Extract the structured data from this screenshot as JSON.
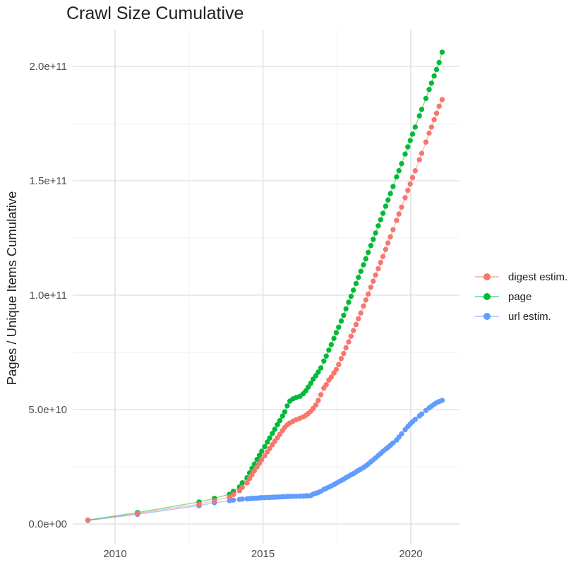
{
  "title": "Crawl Size Cumulative",
  "colors": {
    "background": "#FFFFFF",
    "grid_major": "#E3E3E3",
    "grid_minor": "#F0F0F0",
    "tick_text": "#4D4D4D",
    "text": "#1F1F1F",
    "digest": "#F8766D",
    "page": "#00BA38",
    "url": "#619CFF"
  },
  "legend": {
    "position": "right",
    "items": [
      {
        "label": "digest estim.",
        "color": "#F8766D"
      },
      {
        "label": "page",
        "color": "#00BA38"
      },
      {
        "label": "url estim.",
        "color": "#619CFF"
      }
    ]
  },
  "chart_data": {
    "type": "line",
    "title": "Crawl Size Cumulative",
    "xlabel": "",
    "ylabel": "Pages / Unique Items Cumulative",
    "legend_position": "right",
    "grid": true,
    "x_unit": "decimal year",
    "value_unit_multiplier": 1000000000.0,
    "xlim": [
      2008.55,
      2021.65
    ],
    "ylim": [
      -10000000000.0,
      216000000000.0
    ],
    "x_ticks": [
      {
        "value": 2010,
        "label": "2010"
      },
      {
        "value": 2015,
        "label": "2015"
      },
      {
        "value": 2020,
        "label": "2020"
      }
    ],
    "x_minor": [
      2012.5,
      2017.5
    ],
    "y_ticks": [
      {
        "value_e9": 0,
        "label": "0.0e+00"
      },
      {
        "value_e9": 50,
        "label": "5.0e+10"
      },
      {
        "value_e9": 100,
        "label": "1.0e+11"
      },
      {
        "value_e9": 150,
        "label": "1.5e+11"
      },
      {
        "value_e9": 200,
        "label": "2.0e+11"
      }
    ],
    "y_minor_e9": [
      25,
      75,
      125,
      175
    ],
    "x": [
      2009.08,
      2010.76,
      2012.84,
      2013.36,
      2013.87,
      2014.0,
      2014.21,
      2014.3,
      2014.46,
      2014.55,
      2014.63,
      2014.71,
      2014.8,
      2014.88,
      2014.96,
      2015.06,
      2015.15,
      2015.23,
      2015.32,
      2015.4,
      2015.49,
      2015.57,
      2015.66,
      2015.74,
      2015.82,
      2015.91,
      2016.02,
      2016.13,
      2016.25,
      2016.36,
      2016.45,
      2016.53,
      2016.62,
      2016.7,
      2016.79,
      2016.87,
      2016.96,
      2017.06,
      2017.14,
      2017.23,
      2017.31,
      2017.4,
      2017.48,
      2017.56,
      2017.65,
      2017.73,
      2017.81,
      2017.9,
      2017.98,
      2018.06,
      2018.15,
      2018.23,
      2018.31,
      2018.4,
      2018.48,
      2018.56,
      2018.65,
      2018.73,
      2018.81,
      2018.9,
      2018.98,
      2019.06,
      2019.15,
      2019.23,
      2019.31,
      2019.4,
      2019.52,
      2019.6,
      2019.69,
      2019.81,
      2019.9,
      2019.98,
      2020.06,
      2020.15,
      2020.29,
      2020.37,
      2020.51,
      2020.62,
      2020.7,
      2020.79,
      2020.87,
      2020.96,
      2021.06
    ],
    "series": [
      {
        "name": "digest estim.",
        "color": "#F8766D",
        "values_e9": [
          1.6,
          4.6,
          8.6,
          10.2,
          11.8,
          12.9,
          14.5,
          16.0,
          18.0,
          19.8,
          21.5,
          23.2,
          24.9,
          26.5,
          28.1,
          29.8,
          31.5,
          33.0,
          34.6,
          36.1,
          37.7,
          39.2,
          40.8,
          42.2,
          43.3,
          44.1,
          44.9,
          45.6,
          46.2,
          46.8,
          47.5,
          48.3,
          49.3,
          50.5,
          52.0,
          54.0,
          56.5,
          59.4,
          60.9,
          62.9,
          64.2,
          66.0,
          67.5,
          69.7,
          72.3,
          74.5,
          77.0,
          79.6,
          82.0,
          84.5,
          87.2,
          89.7,
          92.2,
          95.3,
          97.9,
          100.5,
          103.5,
          106.1,
          108.8,
          111.6,
          114.3,
          116.9,
          120.0,
          122.8,
          125.5,
          128.6,
          132.7,
          135.5,
          138.5,
          142.6,
          145.8,
          148.6,
          151.4,
          154.4,
          159.2,
          162.0,
          166.9,
          170.8,
          173.5,
          176.7,
          179.5,
          182.6,
          185.5
        ]
      },
      {
        "name": "page",
        "color": "#00BA38",
        "values_e9": [
          1.7,
          5.0,
          9.6,
          11.2,
          13.0,
          14.3,
          16.2,
          18.0,
          20.2,
          22.3,
          24.3,
          26.2,
          28.2,
          30.0,
          31.8,
          33.8,
          35.8,
          37.6,
          39.6,
          41.4,
          43.4,
          45.2,
          47.2,
          49.0,
          51.6,
          53.7,
          54.7,
          55.3,
          55.8,
          56.9,
          58.2,
          59.8,
          61.5,
          63.3,
          64.8,
          66.4,
          68.2,
          71.2,
          73.4,
          76.0,
          78.4,
          81.1,
          83.6,
          86.0,
          88.7,
          91.2,
          94.0,
          96.9,
          99.5,
          102.2,
          105.1,
          107.8,
          110.4,
          113.3,
          115.9,
          118.7,
          121.7,
          124.4,
          127.2,
          130.3,
          133.0,
          135.8,
          138.9,
          141.6,
          144.4,
          147.5,
          151.7,
          154.4,
          157.5,
          161.7,
          164.8,
          167.6,
          170.4,
          173.5,
          178.4,
          181.2,
          186.0,
          189.9,
          192.7,
          195.8,
          198.6,
          201.7,
          206.2
        ]
      },
      {
        "name": "url estim.",
        "color": "#619CFF",
        "values_e9": [
          1.5,
          4.2,
          8.0,
          9.3,
          10.2,
          10.4,
          10.7,
          10.9,
          11.0,
          11.1,
          11.2,
          11.3,
          11.3,
          11.4,
          11.5,
          11.5,
          11.6,
          11.6,
          11.7,
          11.7,
          11.8,
          11.8,
          11.9,
          11.9,
          12.0,
          12.0,
          12.1,
          12.1,
          12.2,
          12.2,
          12.3,
          12.3,
          12.4,
          13.1,
          13.4,
          13.8,
          14.3,
          15.1,
          15.6,
          16.1,
          16.6,
          17.2,
          17.8,
          18.4,
          19.0,
          19.6,
          20.2,
          20.9,
          21.5,
          22.0,
          22.8,
          23.4,
          24.0,
          24.7,
          25.4,
          26.2,
          27.2,
          28.0,
          28.9,
          29.9,
          30.8,
          31.7,
          32.7,
          33.5,
          34.4,
          35.4,
          36.7,
          38.0,
          39.4,
          41.2,
          42.6,
          43.7,
          44.7,
          45.7,
          47.2,
          48.1,
          49.6,
          50.7,
          51.5,
          52.3,
          53.0,
          53.5,
          54.0
        ]
      }
    ]
  }
}
